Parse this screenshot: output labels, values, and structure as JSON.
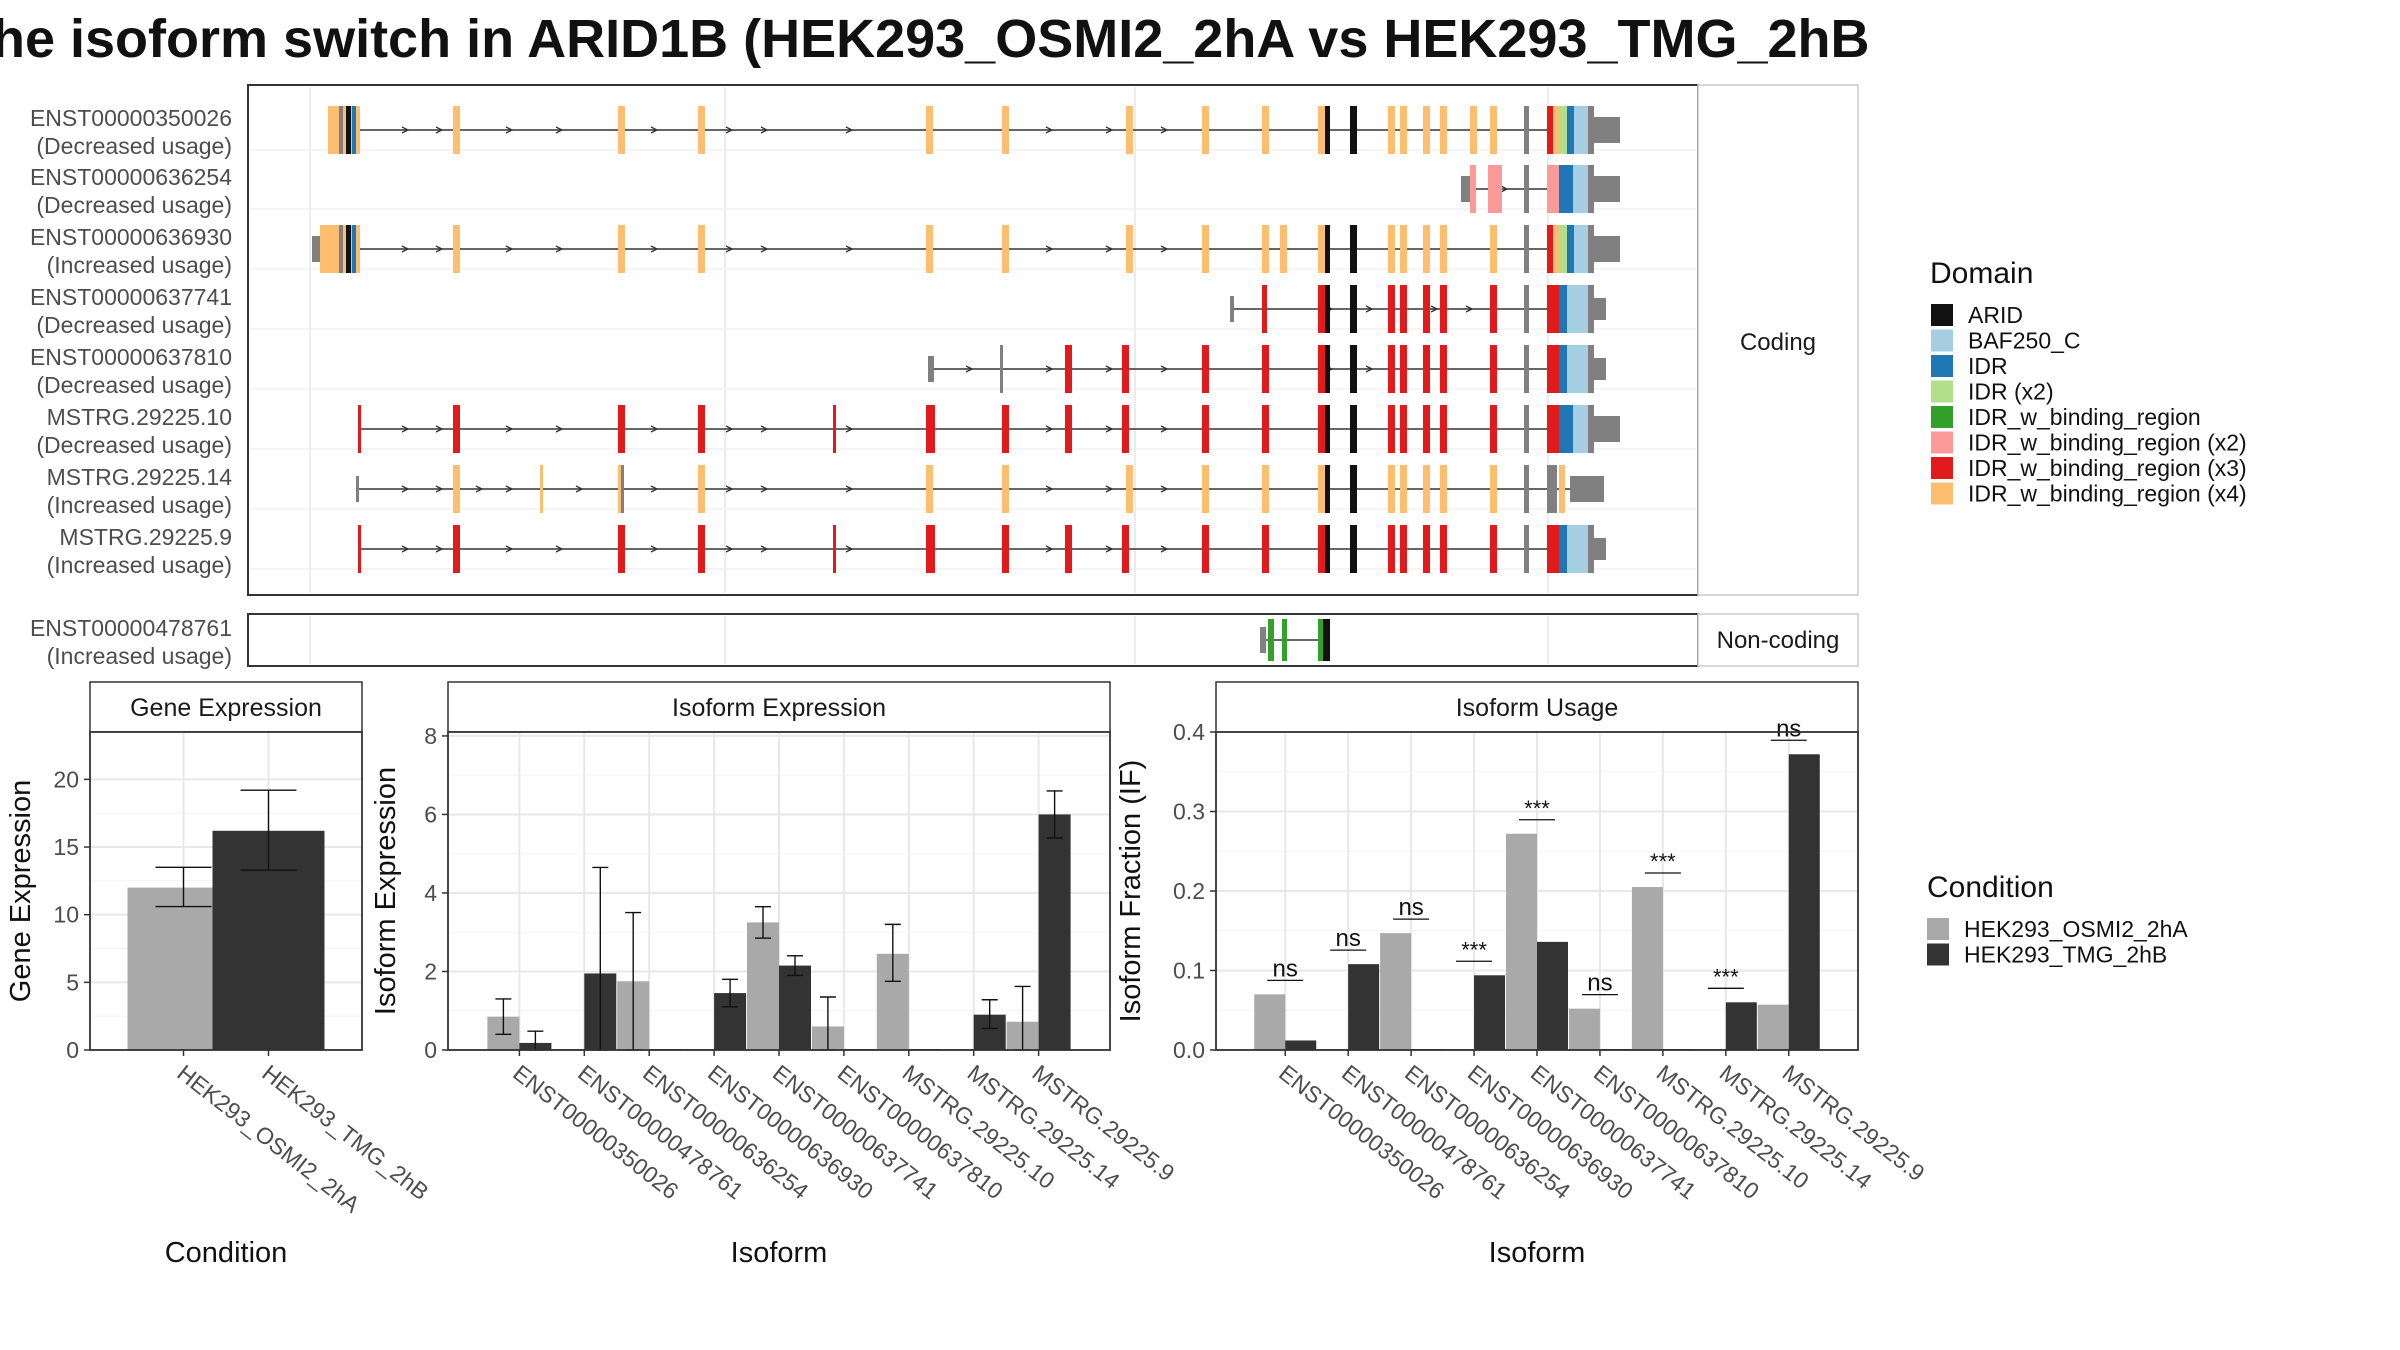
{
  "title": "he isoform switch in ARID1B (HEK293_OSMI2_2hA vs HEK293_TMG_2hB",
  "colors": {
    "domain": {
      "ARID": "#111111",
      "BAF250_C": "#a6cee3",
      "IDR": "#1f78b4",
      "IDR (x2)": "#b2df8a",
      "IDR_w_binding_region": "#33a02c",
      "IDR_w_binding_region (x2)": "#fb9a99",
      "IDR_w_binding_region (x3)": "#e31a1c",
      "IDR_w_binding_region (x4)": "#fdbf6f"
    },
    "condition": {
      "HEK293_OSMI2_2hA": "#a9a9a9",
      "HEK293_TMG_2hB": "#333333"
    },
    "utr": "#808080",
    "intron": "#333333"
  },
  "structure": {
    "coding_strip": "Coding",
    "noncoding_strip": "Non-coding",
    "coding_transcripts": [
      {
        "id": "ENST00000350026",
        "usage": "(Decreased usage)"
      },
      {
        "id": "ENST00000636254",
        "usage": "(Decreased usage)"
      },
      {
        "id": "ENST00000636930",
        "usage": "(Increased usage)"
      },
      {
        "id": "ENST00000637741",
        "usage": "(Decreased usage)"
      },
      {
        "id": "ENST00000637810",
        "usage": "(Decreased usage)"
      },
      {
        "id": "MSTRG.29225.10",
        "usage": "(Decreased usage)"
      },
      {
        "id": "MSTRG.29225.14",
        "usage": "(Increased usage)"
      },
      {
        "id": "MSTRG.29225.9",
        "usage": "(Increased usage)"
      }
    ],
    "noncoding_transcripts": [
      {
        "id": "ENST00000478761",
        "usage": "(Increased usage)"
      }
    ]
  },
  "legend_domain": {
    "title": "Domain",
    "items": [
      "ARID",
      "BAF250_C",
      "IDR",
      "IDR (x2)",
      "IDR_w_binding_region",
      "IDR_w_binding_region (x2)",
      "IDR_w_binding_region (x3)",
      "IDR_w_binding_region (x4)"
    ]
  },
  "legend_condition": {
    "title": "Condition",
    "items": [
      "HEK293_OSMI2_2hA",
      "HEK293_TMG_2hB"
    ]
  },
  "chart_data": [
    {
      "type": "bar",
      "title": "Gene Expression",
      "xlabel": "Condition",
      "ylabel": "Gene Expression",
      "ylim": [
        0,
        23.5
      ],
      "yticks": [
        0,
        5,
        10,
        15,
        20
      ],
      "categories": [
        "HEK293_OSMI2_2hA",
        "HEK293_TMG_2hB"
      ],
      "values": [
        12.0,
        16.2
      ],
      "err_low": [
        10.6,
        13.3
      ],
      "err_high": [
        13.5,
        19.2
      ]
    },
    {
      "type": "bar",
      "title": "Isoform Expression",
      "xlabel": "Isoform",
      "ylabel": "Isoform Expression",
      "ylim": [
        0,
        8.1
      ],
      "yticks": [
        0,
        2,
        4,
        6,
        8
      ],
      "categories": [
        "ENST00000350026",
        "ENST00000478761",
        "ENST00000636254",
        "ENST00000636930",
        "ENST00000637741",
        "ENST00000637810",
        "MSTRG.29225.10",
        "MSTRG.29225.14",
        "MSTRG.29225.9"
      ],
      "series": [
        {
          "name": "HEK293_OSMI2_2hA",
          "values": [
            0.85,
            0,
            1.75,
            0,
            3.25,
            0.6,
            2.45,
            0,
            0.72
          ],
          "err_low": [
            0.4,
            null,
            0,
            null,
            2.85,
            0,
            1.75,
            null,
            0
          ],
          "err_high": [
            1.3,
            null,
            3.5,
            null,
            3.65,
            1.35,
            3.2,
            null,
            1.62
          ]
        },
        {
          "name": "HEK293_TMG_2hB",
          "values": [
            0.18,
            1.95,
            0,
            1.45,
            2.15,
            0,
            0,
            0.9,
            6.0
          ],
          "err_low": [
            0,
            0,
            null,
            1.1,
            1.9,
            null,
            null,
            0.55,
            5.4
          ],
          "err_high": [
            0.48,
            4.65,
            null,
            1.8,
            2.4,
            null,
            null,
            1.28,
            6.6
          ]
        }
      ]
    },
    {
      "type": "bar",
      "title": "Isoform Usage",
      "xlabel": "Isoform",
      "ylabel": "Isoform Fraction (IF)",
      "ylim": [
        0,
        0.4
      ],
      "yticks": [
        0.0,
        0.1,
        0.2,
        0.3,
        0.4
      ],
      "categories": [
        "ENST00000350026",
        "ENST00000478761",
        "ENST00000636254",
        "ENST00000636930",
        "ENST00000637741",
        "ENST00000637810",
        "MSTRG.29225.10",
        "MSTRG.29225.14",
        "MSTRG.29225.9"
      ],
      "series": [
        {
          "name": "HEK293_OSMI2_2hA",
          "values": [
            0.07,
            0,
            0.147,
            0,
            0.272,
            0.052,
            0.205,
            0,
            0.057
          ]
        },
        {
          "name": "HEK293_TMG_2hB",
          "values": [
            0.012,
            0.108,
            0,
            0.094,
            0.136,
            0,
            0,
            0.06,
            0.372
          ]
        }
      ],
      "significance": [
        "ns",
        "ns",
        "ns",
        "***",
        "***",
        "ns",
        "***",
        "***",
        "ns"
      ]
    }
  ]
}
